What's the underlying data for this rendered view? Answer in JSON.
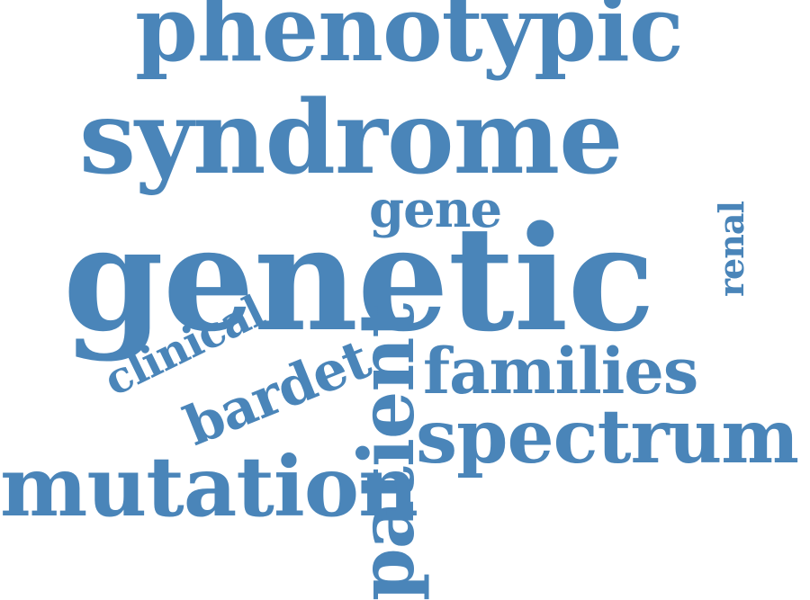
{
  "word_cloud": {
    "color": "#4a85b9",
    "words": [
      {
        "text": "phenotypic",
        "orientation": "horizontal"
      },
      {
        "text": "syndrome",
        "orientation": "horizontal"
      },
      {
        "text": "gene",
        "orientation": "horizontal"
      },
      {
        "text": "renal",
        "orientation": "vertical"
      },
      {
        "text": "genetic",
        "orientation": "horizontal"
      },
      {
        "text": "clinical",
        "orientation": "tilted"
      },
      {
        "text": "bardet",
        "orientation": "tilted"
      },
      {
        "text": "patient",
        "orientation": "vertical"
      },
      {
        "text": "families",
        "orientation": "horizontal"
      },
      {
        "text": "spectrum",
        "orientation": "horizontal"
      },
      {
        "text": "mutation",
        "orientation": "horizontal"
      }
    ]
  }
}
